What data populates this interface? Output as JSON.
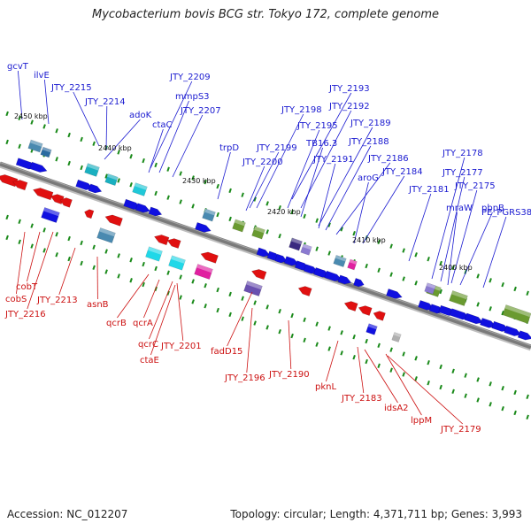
{
  "header": {
    "title": "Mycobacterium bovis BCG str. Tokyo 172, complete genome"
  },
  "footer": {
    "accession": "Accession: NC_012207",
    "topology": "Topology: circular; Length: 4,371,711 bp; Genes: 3,993"
  },
  "colors": {
    "forward_gene": "#1010e0",
    "reverse_gene": "#e01010",
    "backbone": "#7a7a7a",
    "top_label": "#1a1ad0",
    "bottom_label": "#cc1010",
    "tick_green": "#1a8a1a"
  },
  "scale_ticks": [
    "2450 kbp",
    "2440 kbp",
    "2430 kbp",
    "2420 kbp",
    "2410 kbp",
    "2400 kbp"
  ],
  "top_labels": [
    "gcvT",
    "ilvE",
    "JTY_2215",
    "JTY_2214",
    "adoK",
    "JTY_2209",
    "mmpS3",
    "JTY_2207",
    "ctaC",
    "trpD",
    "JTY_2198",
    "JTY_2199",
    "JTY_2200",
    "JTY_2193",
    "JTY_2192",
    "JTY_2195",
    "TB16.3",
    "JTY_2189",
    "JTY_2188",
    "JTY_2191",
    "JTY_2186",
    "aroG",
    "JTY_2184",
    "JTY_2181",
    "JTY_2178",
    "JTY_2177",
    "JTY_2175",
    "mraW",
    "pbpB",
    "PE_PGRS38"
  ],
  "bottom_labels": [
    "cobT",
    "cobS",
    "JTY_2216",
    "JTY_2213",
    "asnB",
    "qcrB",
    "qcrA",
    "qcrC",
    "ctaE",
    "JTY_2201",
    "fadD15",
    "JTY_2196",
    "JTY_2190",
    "pknL",
    "JTY_2183",
    "idsA2",
    "lppM",
    "JTY_2179"
  ]
}
